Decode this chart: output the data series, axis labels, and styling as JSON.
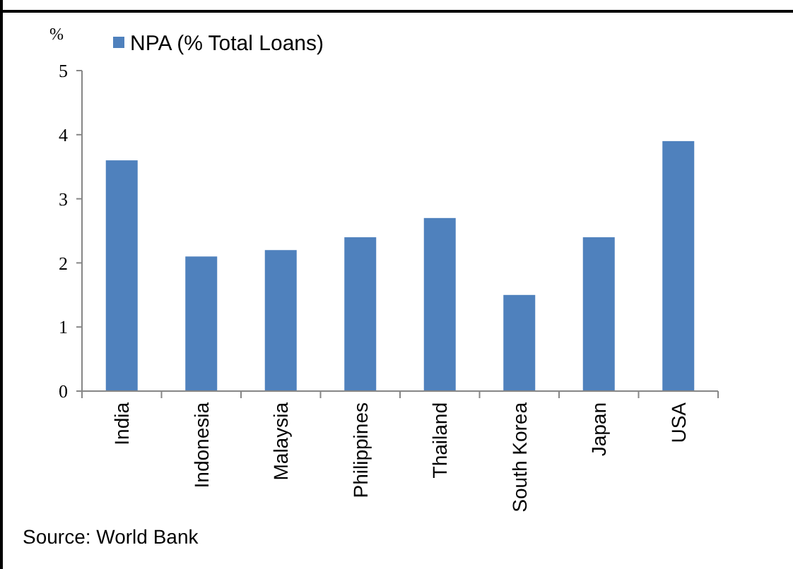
{
  "chart_data": {
    "type": "bar",
    "ylabel": "%",
    "categories": [
      "India",
      "Indonesia",
      "Malaysia",
      "Philippines",
      "Thailand",
      "South Korea",
      "Japan",
      "USA"
    ],
    "series": [
      {
        "name": "NPA (% Total Loans)",
        "color": "#4f81bd",
        "values": [
          3.6,
          2.1,
          2.2,
          2.4,
          2.7,
          1.5,
          2.4,
          3.9
        ]
      }
    ],
    "ylim": [
      0,
      5
    ],
    "yticks": [
      0,
      1,
      2,
      3,
      4,
      5
    ],
    "grid": false,
    "legend": "top left",
    "annotations": [
      "Source: World Bank"
    ]
  }
}
